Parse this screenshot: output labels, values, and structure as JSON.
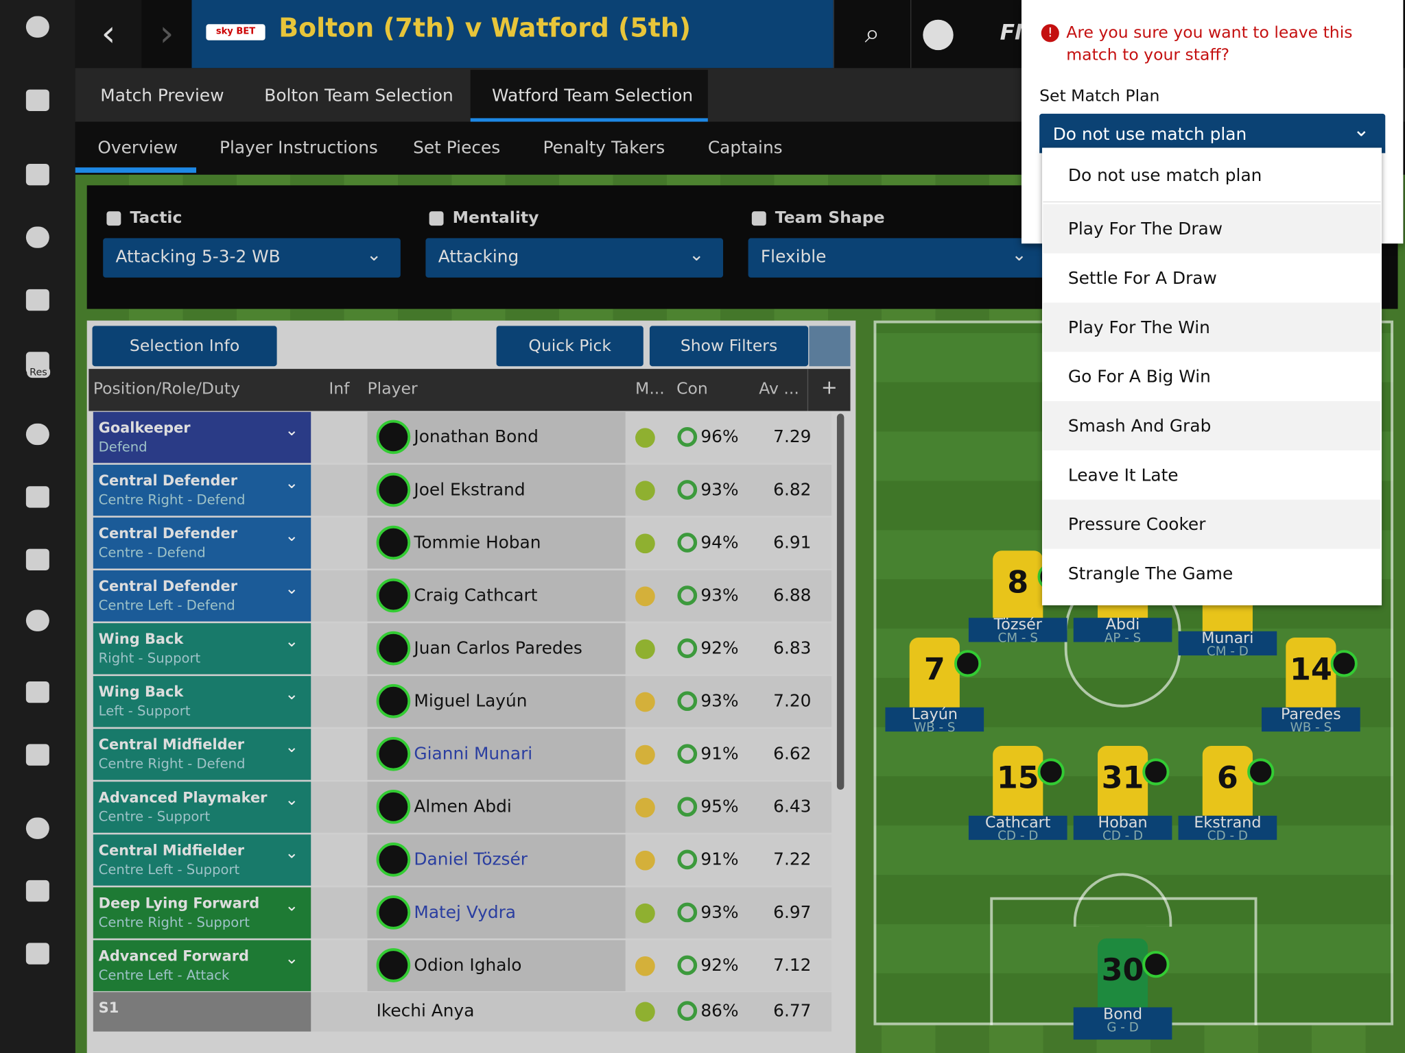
{
  "header": {
    "sponsor": "sky BET",
    "title": "Bolton (7th) v Watford (5th)",
    "brand": "FM"
  },
  "sidebar": {
    "reserves_label": "Res"
  },
  "tabs": [
    "Match Preview",
    "Bolton Team Selection",
    "Watford Team Selection"
  ],
  "subtabs": [
    "Overview",
    "Player Instructions",
    "Set Pieces",
    "Penalty Takers",
    "Captains"
  ],
  "settings": [
    {
      "label": "Tactic",
      "value": "Attacking 5-3-2 WB"
    },
    {
      "label": "Mentality",
      "value": "Attacking"
    },
    {
      "label": "Team Shape",
      "value": "Flexible"
    }
  ],
  "buttons": {
    "selection_info": "Selection Info",
    "quick_pick": "Quick Pick",
    "show_filters": "Show Filters",
    "add_column": "+"
  },
  "table": {
    "columns": [
      "Position/Role/Duty",
      "Inf",
      "Player",
      "M...",
      "Con",
      "Av ..."
    ],
    "rows": [
      [
        "Goalkeeper",
        "Defend",
        "Jonathan Bond",
        "96%",
        "7.29"
      ],
      [
        "Central Defender",
        "Centre Right - Defend",
        "Joel Ekstrand",
        "93%",
        "6.82"
      ],
      [
        "Central Defender",
        "Centre - Defend",
        "Tommie Hoban",
        "94%",
        "6.91"
      ],
      [
        "Central Defender",
        "Centre Left - Defend",
        "Craig Cathcart",
        "93%",
        "6.88"
      ],
      [
        "Wing Back",
        "Right - Support",
        "Juan Carlos Paredes",
        "92%",
        "6.83"
      ],
      [
        "Wing Back",
        "Left - Support",
        "Miguel Layún",
        "93%",
        "7.20"
      ],
      [
        "Central Midfielder",
        "Centre Right - Defend",
        "Gianni Munari",
        "91%",
        "6.62"
      ],
      [
        "Advanced Playmaker",
        "Centre - Support",
        "Almen Abdi",
        "95%",
        "6.43"
      ],
      [
        "Central Midfielder",
        "Centre Left - Support",
        "Daniel Tözsér",
        "91%",
        "7.22"
      ],
      [
        "Deep Lying Forward",
        "Centre Right - Support",
        "Matej Vydra",
        "93%",
        "6.97"
      ],
      [
        "Advanced Forward",
        "Centre Left - Attack",
        "Odion Ighalo",
        "92%",
        "7.12"
      ],
      [
        "S1",
        null,
        "Ikechi Anya",
        "86%",
        "6.77"
      ]
    ]
  },
  "pitch": [
    {
      "number": "8",
      "name": "Tözsér",
      "role": "CM - S"
    },
    {
      "number": null,
      "name": "Abdi",
      "role": "AP - S"
    },
    {
      "number": null,
      "name": "Munari",
      "role": "CM - D"
    },
    {
      "number": "7",
      "name": "Layún",
      "role": "WB - S"
    },
    {
      "number": "14",
      "name": "Paredes",
      "role": "WB - S"
    },
    {
      "number": "15",
      "name": "Cathcart",
      "role": "CD - D"
    },
    {
      "number": "31",
      "name": "Hoban",
      "role": "CD - D"
    },
    {
      "number": "6",
      "name": "Ekstrand",
      "role": "CD - D"
    },
    {
      "number": "30",
      "name": "Bond",
      "role": "G - D"
    }
  ],
  "dialog": {
    "warning": "Are you sure you want to leave this match to your staff?",
    "label": "Set Match Plan",
    "selected": "Do not use match plan",
    "options": [
      "Do not use match plan",
      "Play For The Draw",
      "Settle For A Draw",
      "Play For The Win",
      "Go For A Big Win",
      "Smash And Grab",
      "Leave It Late",
      "Pressure Cooker",
      "Strangle The Game"
    ]
  }
}
